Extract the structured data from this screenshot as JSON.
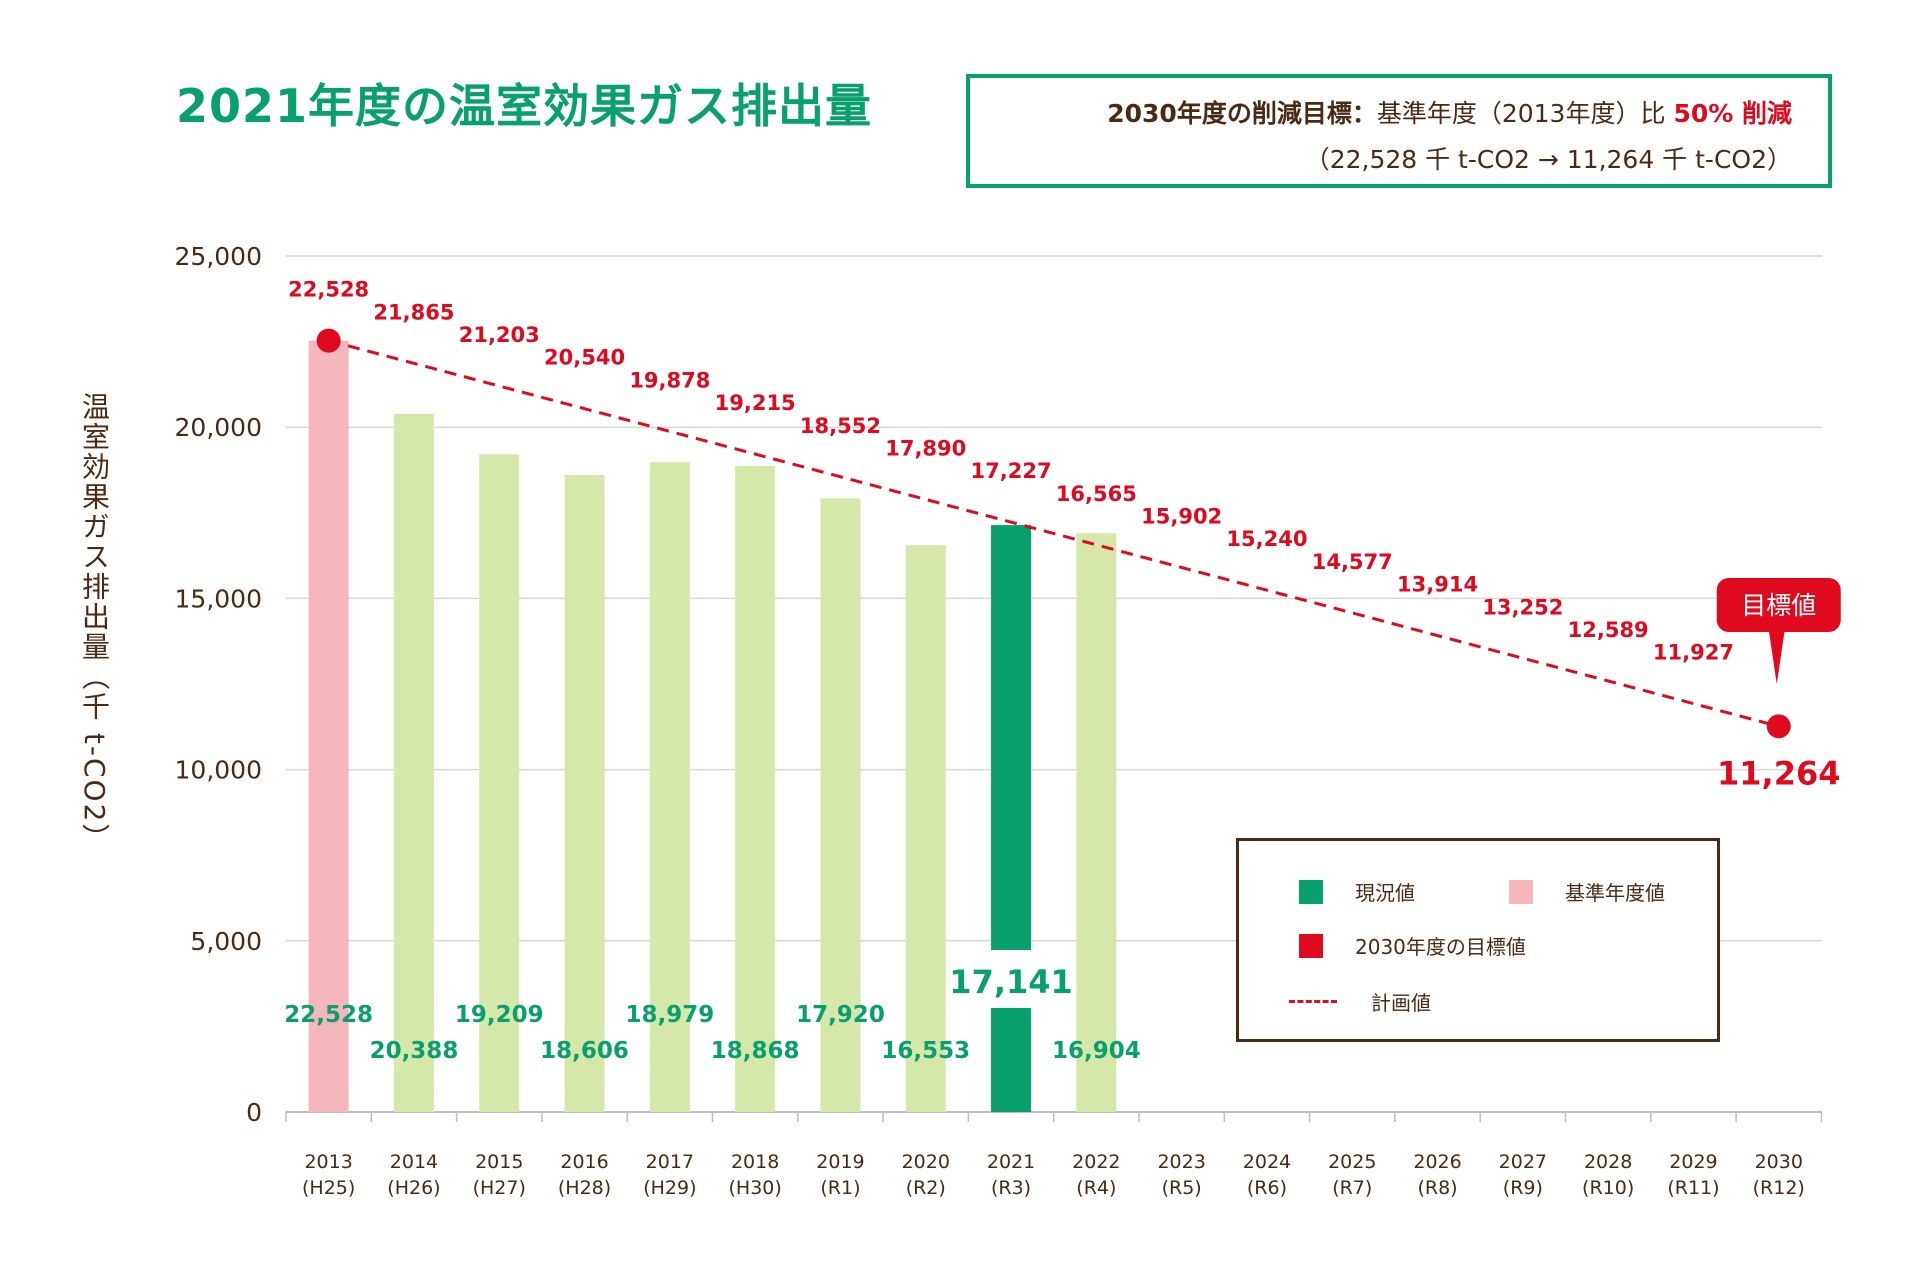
{
  "title": "2021年度の温室効果ガス排出量",
  "target_box": {
    "line1_lead": "2030年度の削減目標：",
    "line1_text": "基準年度（2013年度）比",
    "line1_pct": "50% 削減",
    "line2": "（22,528 千 t-CO2 → 11,264 千 t-CO2）"
  },
  "y_axis_label": "温室効果ガス排出量（千 t-CO2）",
  "colors": {
    "current": "#08a06c",
    "base_year": "#f6b6bd",
    "past": "#d6e8a9",
    "plan": "#e00a1e",
    "text_dark": "#4a2a14",
    "grid": "#d9d9d9"
  },
  "legend": {
    "current": "現況値",
    "base_year": "基準年度値",
    "target": "2030年度の目標値",
    "plan": "計画値"
  },
  "chart_data": {
    "type": "bar",
    "categories": [
      [
        "2013",
        "(H25)"
      ],
      [
        "2014",
        "(H26)"
      ],
      [
        "2015",
        "(H27)"
      ],
      [
        "2016",
        "(H28)"
      ],
      [
        "2017",
        "(H29)"
      ],
      [
        "2018",
        "(H30)"
      ],
      [
        "2019",
        "(R1)"
      ],
      [
        "2020",
        "(R2)"
      ],
      [
        "2021",
        "(R3)"
      ],
      [
        "2022",
        "(R4)"
      ],
      [
        "2023",
        "(R5)"
      ],
      [
        "2024",
        "(R6)"
      ],
      [
        "2025",
        "(R7)"
      ],
      [
        "2026",
        "(R8)"
      ],
      [
        "2027",
        "(R9)"
      ],
      [
        "2028",
        "(R10)"
      ],
      [
        "2029",
        "(R11)"
      ],
      [
        "2030",
        "(R12)"
      ]
    ],
    "ylim": [
      0,
      25000
    ],
    "yticks": [
      "0",
      "5,000",
      "10,000",
      "15,000",
      "20,000",
      "25,000"
    ],
    "grid": true,
    "bars": {
      "values": [
        22528,
        20388,
        19209,
        18606,
        18979,
        18868,
        17920,
        16553,
        17141,
        16904
      ],
      "labels": [
        "22,528",
        "20,388",
        "19,209",
        "18,606",
        "18,979",
        "18,868",
        "17,920",
        "16,553",
        "17,141",
        "16,904"
      ],
      "kinds": [
        "base",
        "past",
        "past",
        "past",
        "past",
        "past",
        "past",
        "past",
        "current",
        "past"
      ]
    },
    "plan_line": {
      "values": [
        22528,
        21865,
        21203,
        20540,
        19878,
        19215,
        18552,
        17890,
        17227,
        16565,
        15902,
        15240,
        14577,
        13914,
        13252,
        12589,
        11927,
        11264
      ],
      "labels": [
        "22,528",
        "21,865",
        "21,203",
        "20,540",
        "19,878",
        "19,215",
        "18,552",
        "17,890",
        "17,227",
        "16,565",
        "15,902",
        "15,240",
        "14,577",
        "13,914",
        "13,252",
        "12,589",
        "11,927",
        "11,264"
      ]
    },
    "target_callout": "目標値"
  }
}
